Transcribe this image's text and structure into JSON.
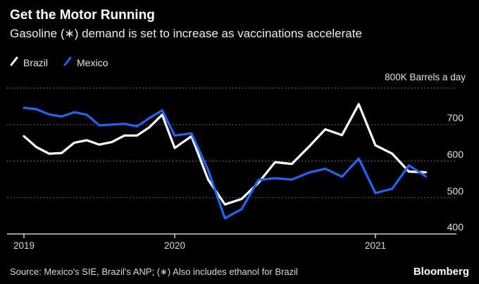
{
  "header": {
    "title": "Get the Motor Running",
    "subtitle": "Gasoline (∗) demand is set to increase as vaccinations accelerate"
  },
  "legend": [
    {
      "label": "Brazil",
      "color": "#ffffff"
    },
    {
      "label": "Mexico",
      "color": "#2166f2"
    }
  ],
  "axis_note": "800K Barrels a day",
  "chart_data": {
    "type": "line",
    "title": "Get the Motor Running",
    "subtitle": "Gasoline (∗) demand is set to increase as vaccinations accelerate",
    "unit": "thousand barrels a day",
    "x": [
      "Jan 2019",
      "Feb 2019",
      "Mar 2019",
      "Apr 2019",
      "May 2019",
      "Jun 2019",
      "Jul 2019",
      "Aug 2019",
      "Sep 2019",
      "Oct 2019",
      "Nov 2019",
      "Dec 2019",
      "Jan 2020",
      "Feb 2020",
      "Mar 2020",
      "Apr 2020",
      "May 2020",
      "Jun 2020",
      "Jul 2020",
      "Aug 2020",
      "Sep 2020",
      "Oct 2020",
      "Nov 2020",
      "Dec 2020",
      "Jan 2021",
      "Feb 2021",
      "Mar 2021",
      "Apr 2021"
    ],
    "series": [
      {
        "name": "Brazil",
        "color": "#ffffff",
        "values": [
          668,
          638,
          620,
          622,
          650,
          657,
          645,
          652,
          670,
          670,
          693,
          727,
          636,
          668,
          549,
          481,
          496,
          540,
          597,
          592,
          638,
          687,
          671,
          756,
          643,
          620,
          571,
          569
        ]
      },
      {
        "name": "Mexico",
        "color": "#2166f2",
        "values": [
          746,
          742,
          728,
          722,
          734,
          727,
          698,
          700,
          702,
          695,
          718,
          739,
          670,
          676,
          575,
          443,
          468,
          548,
          553,
          549,
          568,
          579,
          557,
          607,
          512,
          524,
          588,
          558
        ]
      }
    ],
    "ylim": [
      400,
      800
    ],
    "y_ticks": [
      400,
      500,
      600,
      700,
      800
    ],
    "y_tick_labels": [
      "700",
      "600",
      "500",
      "400"
    ],
    "x_tick_labels": [
      "2019",
      "2020",
      "2021"
    ],
    "grid": "horizontal-dotted",
    "legend_position": "top-left"
  },
  "footer": {
    "source": "Source: Mexico's SIE, Brazil's ANP; (∗) Also includes ethanol for Brazil",
    "brand": "Bloomberg"
  }
}
